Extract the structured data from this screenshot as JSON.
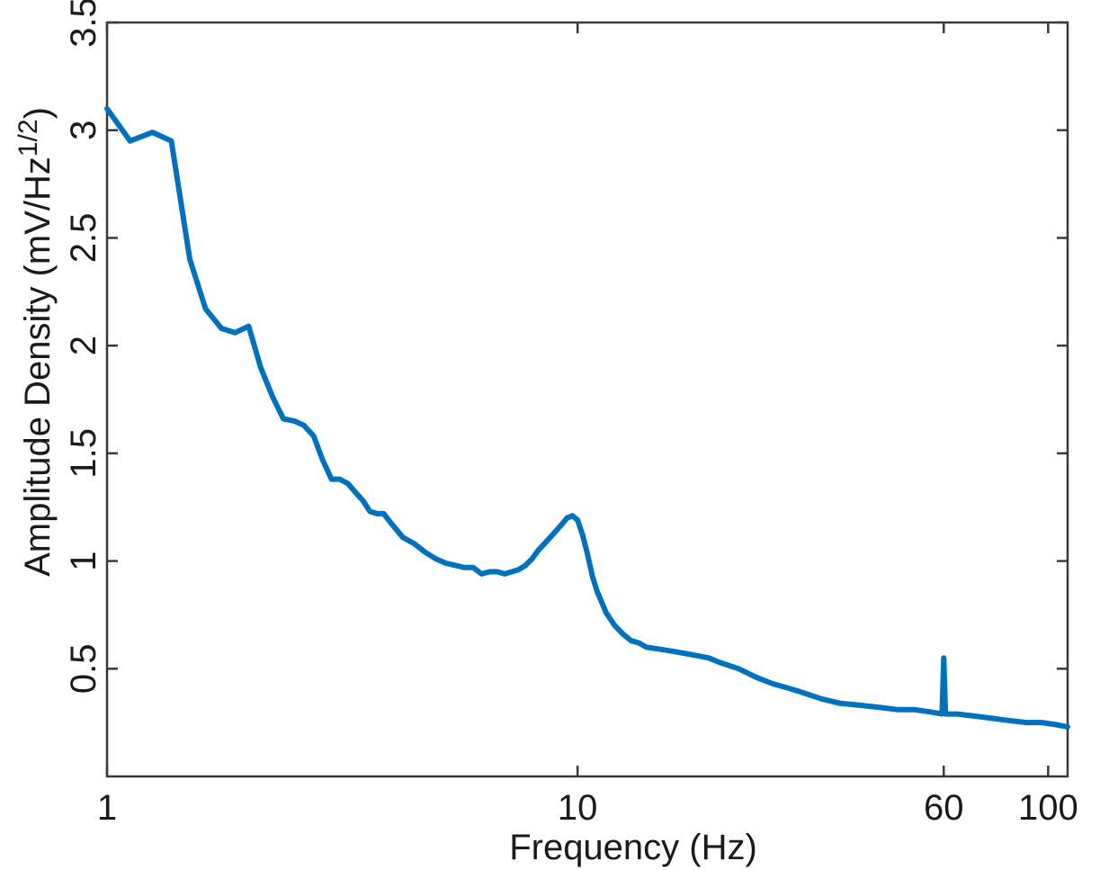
{
  "chart_data": {
    "type": "line",
    "title": "",
    "xlabel": "Frequency (Hz)",
    "ylabel": {
      "pre": "Amplitude  Density (mV/Hz",
      "sup": "1/2",
      "post": ")"
    },
    "xscale": "log",
    "xlim": [
      1,
      110
    ],
    "ylim": [
      0,
      3.5
    ],
    "xticks": [
      1,
      10,
      60,
      100
    ],
    "xtick_labels": [
      "1",
      "10",
      "60",
      "100"
    ],
    "yticks": [
      0.5,
      1,
      1.5,
      2,
      2.5,
      3,
      3.5
    ],
    "ytick_labels": [
      "0.5",
      "1",
      "1.5",
      "2",
      "2.5",
      "3",
      "3.5"
    ],
    "grid": false,
    "line_color": "#0072BD",
    "series": [
      {
        "x": [
          1.0,
          1.12,
          1.25,
          1.37,
          1.5,
          1.62,
          1.75,
          1.87,
          2.0,
          2.12,
          2.25,
          2.37,
          2.5,
          2.62,
          2.75,
          2.87,
          3.0,
          3.12,
          3.25,
          3.37,
          3.5,
          3.62,
          3.75,
          3.87,
          4.0,
          4.25,
          4.5,
          4.75,
          5.0,
          5.25,
          5.5,
          5.75,
          6.0,
          6.25,
          6.5,
          6.75,
          7.0,
          7.25,
          7.5,
          7.75,
          8.0,
          8.25,
          8.5,
          8.75,
          9.0,
          9.25,
          9.5,
          9.75,
          10.0,
          10.25,
          10.5,
          10.75,
          11.0,
          11.5,
          12.0,
          12.5,
          13.0,
          13.5,
          14.0,
          15.0,
          16.0,
          17.0,
          18.0,
          19.0,
          20.0,
          22.0,
          24.0,
          26.0,
          28.0,
          30.0,
          33.0,
          36.0,
          40.0,
          44.0,
          48.0,
          52.0,
          56.0,
          59.5,
          60.0,
          60.5,
          64.0,
          70.0,
          76.0,
          82.0,
          90.0,
          97.0,
          104.0,
          110.0
        ],
        "y": [
          3.1,
          2.95,
          2.99,
          2.95,
          2.4,
          2.17,
          2.08,
          2.06,
          2.09,
          1.9,
          1.76,
          1.66,
          1.65,
          1.63,
          1.58,
          1.47,
          1.38,
          1.38,
          1.36,
          1.32,
          1.28,
          1.23,
          1.22,
          1.22,
          1.18,
          1.11,
          1.08,
          1.04,
          1.01,
          0.99,
          0.98,
          0.97,
          0.97,
          0.94,
          0.95,
          0.95,
          0.94,
          0.95,
          0.96,
          0.98,
          1.01,
          1.05,
          1.08,
          1.11,
          1.14,
          1.17,
          1.2,
          1.21,
          1.19,
          1.12,
          1.03,
          0.93,
          0.86,
          0.76,
          0.7,
          0.66,
          0.63,
          0.62,
          0.6,
          0.59,
          0.58,
          0.57,
          0.56,
          0.55,
          0.53,
          0.5,
          0.46,
          0.43,
          0.41,
          0.39,
          0.36,
          0.34,
          0.33,
          0.32,
          0.31,
          0.31,
          0.3,
          0.29,
          0.55,
          0.29,
          0.29,
          0.28,
          0.27,
          0.26,
          0.25,
          0.25,
          0.24,
          0.23
        ]
      }
    ]
  }
}
